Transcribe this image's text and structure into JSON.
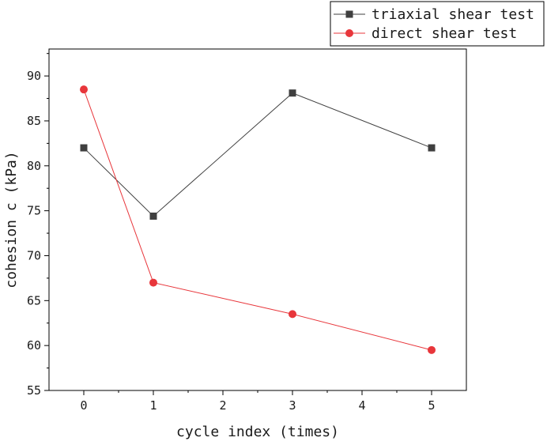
{
  "chart_data": {
    "type": "line",
    "title": "",
    "xlabel": "cycle index (times)",
    "ylabel": "cohesion c (kPa)",
    "xlim": [
      -0.5,
      5.5
    ],
    "ylim": [
      55,
      93
    ],
    "x_ticks": [
      0,
      1,
      2,
      3,
      4,
      5
    ],
    "x_tick_labels": [
      "0",
      "1",
      "2",
      "3",
      "4",
      "5"
    ],
    "y_ticks": [
      55,
      60,
      65,
      70,
      75,
      80,
      85,
      90
    ],
    "y_tick_labels": [
      "55",
      "60",
      "65",
      "70",
      "75",
      "80",
      "85",
      "90"
    ],
    "grid": false,
    "legend_position": "top-right",
    "series": [
      {
        "name": "triaxial shear test",
        "marker": "square",
        "color": "#3f3f3f",
        "x": [
          0,
          1,
          3,
          5
        ],
        "y": [
          82.0,
          74.4,
          88.1,
          82.0
        ]
      },
      {
        "name": "direct shear test",
        "marker": "circle",
        "color": "#e8363b",
        "x": [
          0,
          1,
          3,
          5
        ],
        "y": [
          88.5,
          67.0,
          63.5,
          59.5
        ]
      }
    ]
  }
}
